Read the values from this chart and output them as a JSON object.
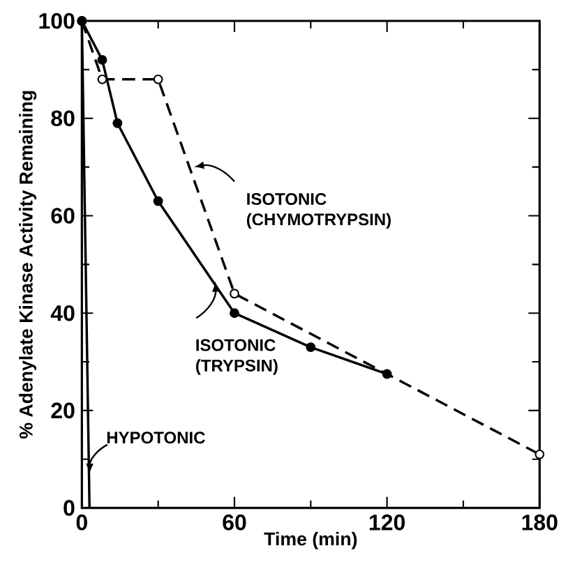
{
  "chart_data": {
    "type": "line",
    "xlabel": "Time (min)",
    "ylabel": "% Adenylate Kinase Activity Remaining",
    "xlim": [
      0,
      180
    ],
    "ylim": [
      0,
      100
    ],
    "xticks": [
      0,
      60,
      120,
      180
    ],
    "yticks": [
      0,
      20,
      40,
      60,
      80,
      100
    ],
    "grid": false,
    "legend": false,
    "series": [
      {
        "name": "ISOTONIC (CHYMOTRYPSIN)",
        "color": "#000000",
        "x": [
          0,
          8,
          30,
          60,
          180
        ],
        "values": [
          100,
          88,
          88,
          44,
          11
        ],
        "marker": "circle",
        "line_style": "dashed"
      },
      {
        "name": "ISOTONIC (TRYPSIN)",
        "color": "#000000",
        "x": [
          0,
          8,
          14,
          30,
          60,
          90,
          120
        ],
        "values": [
          100,
          92,
          79,
          63,
          40,
          33,
          27.5
        ],
        "marker": "circle",
        "line_style": "solid"
      },
      {
        "name": "HYPOTONIC",
        "color": "#000000",
        "x": [
          0,
          3
        ],
        "values": [
          100,
          0
        ],
        "marker": "none",
        "line_style": "solid"
      }
    ]
  }
}
